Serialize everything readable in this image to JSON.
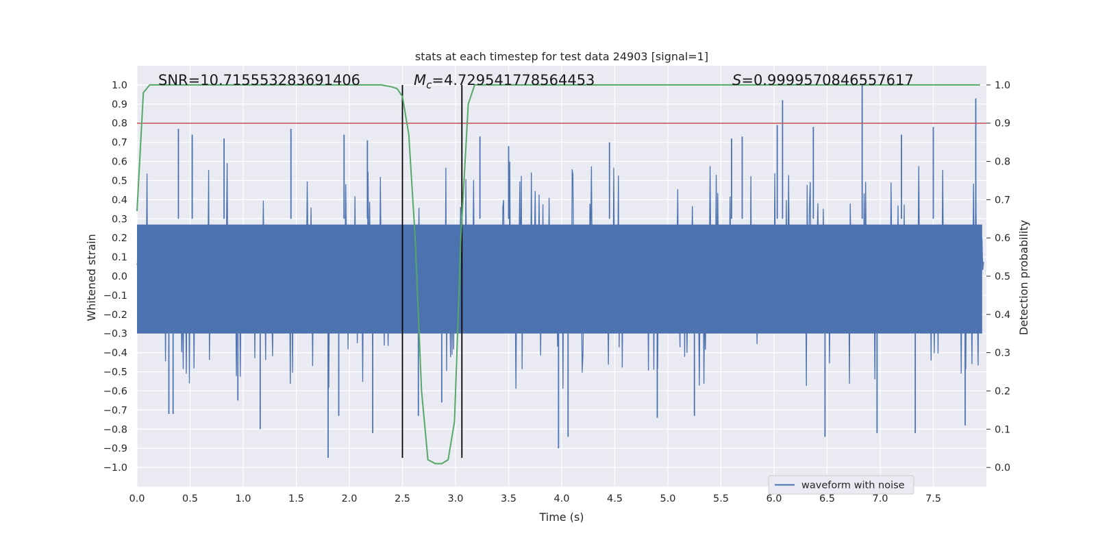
{
  "chart_data": {
    "type": "line",
    "title": "stats at each timestep for test data 24903 [signal=1]",
    "xlabel": "Time (s)",
    "ylabel_left": "Whitened strain",
    "ylabel_right": "Detection probability",
    "xlim": [
      0.0,
      8.0
    ],
    "ylim_left": [
      -1.1,
      1.1
    ],
    "ylim_right": [
      -0.05,
      1.05
    ],
    "x_ticks": [
      "0.0",
      "0.5",
      "1.0",
      "1.5",
      "2.0",
      "2.5",
      "3.0",
      "3.5",
      "4.0",
      "4.5",
      "5.0",
      "5.5",
      "6.0",
      "6.5",
      "7.0",
      "7.5"
    ],
    "y_left_ticks": [
      "1.0",
      "0.9",
      "0.8",
      "0.7",
      "0.6",
      "0.5",
      "0.4",
      "0.3",
      "0.2",
      "0.1",
      "0.0",
      "−0.1",
      "−0.2",
      "−0.3",
      "−0.4",
      "−0.5",
      "−0.6",
      "−0.7",
      "−0.8",
      "−0.9",
      "−1.0"
    ],
    "y_right_ticks": [
      "1.0",
      "0.9",
      "0.8",
      "0.7",
      "0.6",
      "0.5",
      "0.4",
      "0.3",
      "0.2",
      "0.1",
      "0.0"
    ],
    "grid": true,
    "legend": {
      "label": "waveform with noise",
      "placement": "lower-right"
    },
    "annotations": {
      "snr": "SNR=10.715553283691406",
      "mc_symbol": "M",
      "mc_sub": "c",
      "mc_value": "=4.729541778564453",
      "s_symbol": "S",
      "s_value": "=0.9999570846557617"
    },
    "threshold_line": {
      "y": 0.8,
      "color": "#c44e52"
    },
    "vertical_lines": {
      "x": [
        2.5,
        3.06
      ],
      "color": "#000000"
    },
    "colors": {
      "waveform": "#4c72b0",
      "probability": "#55a868",
      "background": "#eaeaf2"
    },
    "waveform": {
      "description_spikes_positive": [
        [
          0.39,
          0.77
        ],
        [
          0.52,
          0.74
        ],
        [
          1.45,
          0.77
        ],
        [
          0.82,
          0.72
        ],
        [
          1.95,
          0.74
        ],
        [
          2.17,
          0.71
        ],
        [
          3.23,
          0.73
        ],
        [
          3.5,
          0.68
        ],
        [
          4.45,
          0.7
        ],
        [
          5.6,
          0.72
        ],
        [
          5.7,
          0.73
        ],
        [
          6.03,
          0.79
        ],
        [
          6.08,
          0.92
        ],
        [
          6.37,
          0.78
        ],
        [
          6.83,
          1.0
        ],
        [
          7.2,
          0.74
        ],
        [
          7.5,
          0.78
        ],
        [
          7.9,
          0.93
        ]
      ],
      "spikes_negative": [
        [
          0.3,
          -0.72
        ],
        [
          0.34,
          -0.72
        ],
        [
          0.95,
          -0.65
        ],
        [
          1.16,
          -0.8
        ],
        [
          1.8,
          -0.95
        ],
        [
          1.9,
          -0.73
        ],
        [
          2.22,
          -0.82
        ],
        [
          2.65,
          -0.73
        ],
        [
          2.87,
          -0.66
        ],
        [
          3.97,
          -0.9
        ],
        [
          4.06,
          -0.84
        ],
        [
          4.9,
          -0.74
        ],
        [
          5.25,
          -0.73
        ],
        [
          6.48,
          -0.84
        ],
        [
          6.97,
          -0.82
        ],
        [
          7.33,
          -0.82
        ],
        [
          7.8,
          -0.78
        ]
      ]
    },
    "probability": {
      "x": [
        0.0,
        0.06,
        0.12,
        0.18,
        2.3,
        2.4,
        2.45,
        2.5,
        2.56,
        2.62,
        2.68,
        2.74,
        2.81,
        2.87,
        2.93,
        2.99,
        3.05,
        3.12,
        3.18,
        3.24,
        7.94
      ],
      "y": [
        0.67,
        0.98,
        1.0,
        1.0,
        1.0,
        0.995,
        0.99,
        0.97,
        0.87,
        0.6,
        0.2,
        0.02,
        0.01,
        0.01,
        0.02,
        0.12,
        0.6,
        0.95,
        1.0,
        1.0,
        1.0
      ]
    }
  }
}
